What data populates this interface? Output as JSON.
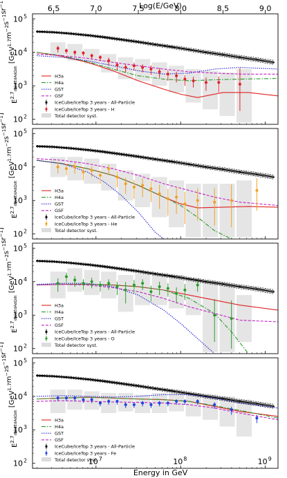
{
  "figure": {
    "top_axis_label": "Log(E/GeV)",
    "top_ticks": [
      "6.5",
      "7.0",
      "7.5",
      "8.0",
      "8.5",
      "9.0"
    ],
    "top_tick_values": [
      6.5,
      7.0,
      7.5,
      8.0,
      8.5,
      9.0
    ],
    "x_label": "Energy in GeV",
    "x_ticks": [
      {
        "base": "10",
        "exp": "7",
        "log": 7
      },
      {
        "base": "10",
        "exp": "8",
        "log": 8
      },
      {
        "base": "10",
        "exp": "9",
        "log": 9
      }
    ],
    "y_ticks": [
      {
        "base": "10",
        "exp": "2",
        "log": 2
      },
      {
        "base": "10",
        "exp": "3",
        "log": 3
      },
      {
        "base": "10",
        "exp": "4",
        "log": 4
      },
      {
        "base": "10",
        "exp": "5",
        "log": 5
      }
    ],
    "y_label_text": "E",
    "y_label_sup": "2.7",
    "y_label_frac": "dN/dEdAdΩdt",
    "y_label_units": "[GeV",
    "y_label_units_sup": "1.7",
    "y_label_units_rest": "m",
    "y_label_units_sup2": "−2",
    "y_label_units_rest2": "s",
    "y_label_units_sup3": "−1",
    "y_label_units_rest3": "sr",
    "y_label_units_sup4": "−1",
    "y_label_units_end": "]",
    "colors": {
      "allparticle": "#000000",
      "H": "#e0202a",
      "He": "#f0a020",
      "O": "#2a9a2a",
      "Fe": "#2040e0",
      "h3a": "#e02020",
      "h4a": "#2a9a2a",
      "gst": "#2020d0",
      "gsf": "#c020c0",
      "syst": "#dcdcdc"
    }
  },
  "chart_data": [
    {
      "type": "line",
      "panel": "H",
      "x_scale": "log",
      "y_scale": "log",
      "xlim_log": [
        6.25,
        9.15
      ],
      "ylim_log": [
        1.85,
        5.15
      ],
      "legend": [
        "H3a",
        "H4a",
        "GST",
        "GSF",
        "IceCube/IceTop 3 years - All-Particle",
        "IceCube/IceTop 3 years - H",
        "Total detector syst."
      ],
      "allparticle": {
        "logE": [
          6.3,
          6.5,
          6.7,
          6.9,
          7.1,
          7.3,
          7.5,
          7.7,
          7.9,
          8.1,
          8.3,
          8.5,
          8.7,
          8.9,
          9.1
        ],
        "logF": [
          4.62,
          4.6,
          4.56,
          4.51,
          4.45,
          4.38,
          4.31,
          4.23,
          4.16,
          4.08,
          4.0,
          3.93,
          3.85,
          3.78,
          3.7
        ]
      },
      "component": {
        "label": "H",
        "logE": [
          6.55,
          6.65,
          6.75,
          6.85,
          6.95,
          7.05,
          7.15,
          7.25,
          7.35,
          7.45,
          7.55,
          7.65,
          7.75,
          7.85,
          7.95,
          8.05,
          8.15,
          8.3,
          8.45,
          8.7
        ],
        "logF": [
          4.12,
          4.05,
          4.0,
          3.98,
          3.9,
          3.85,
          3.75,
          3.62,
          3.55,
          3.6,
          3.55,
          3.5,
          3.42,
          3.35,
          3.3,
          3.2,
          3.15,
          3.1,
          3.1,
          3.05
        ],
        "err": [
          0.12,
          0.1,
          0.1,
          0.1,
          0.1,
          0.12,
          0.15,
          0.15,
          0.15,
          0.15,
          0.15,
          0.18,
          0.18,
          0.2,
          0.2,
          0.2,
          0.2,
          0.25,
          0.3,
          0.8
        ]
      },
      "syst": {
        "logE": [
          6.55,
          6.75,
          6.95,
          7.15,
          7.35,
          7.55,
          7.75,
          7.95,
          8.15,
          8.35,
          8.55,
          8.75
        ],
        "lo": [
          3.9,
          3.75,
          3.65,
          3.4,
          3.2,
          3.15,
          3.0,
          2.8,
          2.5,
          2.3,
          2.1,
          1.9
        ],
        "hi": [
          4.3,
          4.25,
          4.1,
          3.95,
          3.85,
          3.8,
          3.7,
          3.6,
          3.5,
          3.45,
          3.4,
          3.5
        ]
      },
      "models": {
        "h3a": {
          "logE": [
            6.3,
            6.6,
            6.9,
            7.2,
            7.5,
            7.8,
            8.0,
            8.2,
            8.5,
            8.8,
            9.15
          ],
          "logF": [
            4.0,
            3.88,
            3.7,
            3.45,
            3.15,
            2.9,
            2.75,
            2.65,
            2.8,
            2.8,
            2.7
          ]
        },
        "h4a": {
          "logE": [
            6.3,
            6.6,
            6.9,
            7.2,
            7.5,
            7.8,
            8.1,
            8.4,
            8.7,
            9.15
          ],
          "logF": [
            4.0,
            3.9,
            3.72,
            3.5,
            3.3,
            3.2,
            3.15,
            3.18,
            3.2,
            3.22
          ]
        },
        "gst": {
          "logE": [
            6.3,
            6.6,
            6.9,
            7.2,
            7.5,
            7.8,
            8.1,
            8.4,
            8.7,
            9.15
          ],
          "logF": [
            3.9,
            3.85,
            3.75,
            3.6,
            3.45,
            3.35,
            3.38,
            3.5,
            3.55,
            3.5
          ]
        },
        "gsf": {
          "logE": [
            6.3,
            6.6,
            6.9,
            7.2,
            7.5,
            7.8,
            8.1,
            8.4,
            8.7,
            9.15
          ],
          "logF": [
            3.95,
            3.9,
            3.82,
            3.7,
            3.6,
            3.5,
            3.42,
            3.38,
            3.35,
            3.35
          ]
        }
      }
    },
    {
      "type": "line",
      "panel": "He",
      "x_scale": "log",
      "y_scale": "log",
      "xlim_log": [
        6.25,
        9.15
      ],
      "ylim_log": [
        1.85,
        5.15
      ],
      "legend": [
        "H3a",
        "H4a",
        "GST",
        "GSF",
        "IceCube/IceTop 3 years - All-Particle",
        "IceCube/IceTop 3 years - He",
        "Total detector syst."
      ],
      "allparticle": {
        "logE": [
          6.3,
          6.5,
          6.7,
          6.9,
          7.1,
          7.3,
          7.5,
          7.7,
          7.9,
          8.1,
          8.3,
          8.5,
          8.7,
          8.9,
          9.1
        ],
        "logF": [
          4.62,
          4.6,
          4.56,
          4.51,
          4.45,
          4.38,
          4.31,
          4.23,
          4.16,
          4.08,
          4.0,
          3.93,
          3.85,
          3.78,
          3.7
        ]
      },
      "component": {
        "label": "He",
        "logE": [
          6.55,
          6.65,
          6.75,
          6.85,
          6.95,
          7.05,
          7.15,
          7.25,
          7.35,
          7.45,
          7.55,
          7.65,
          7.75,
          7.85,
          7.95,
          8.05,
          8.2,
          8.4,
          8.6,
          8.9
        ],
        "logF": [
          4.0,
          3.95,
          4.0,
          3.85,
          3.9,
          3.75,
          3.95,
          3.7,
          3.5,
          3.4,
          3.45,
          3.35,
          3.2,
          3.05,
          3.1,
          2.9,
          3.0,
          2.95,
          3.0,
          3.3
        ],
        "err": [
          0.2,
          0.2,
          0.2,
          0.25,
          0.2,
          0.25,
          0.2,
          0.3,
          0.3,
          0.35,
          0.35,
          0.4,
          0.45,
          0.5,
          0.5,
          0.6,
          0.6,
          0.7,
          0.8,
          0.6
        ]
      },
      "syst": {
        "logE": [
          6.55,
          6.75,
          6.95,
          7.15,
          7.35,
          7.55,
          7.75,
          7.95,
          8.15,
          8.35,
          8.55,
          8.75
        ],
        "lo": [
          3.7,
          3.6,
          3.5,
          3.3,
          3.0,
          2.8,
          2.5,
          2.2,
          1.9,
          1.9,
          1.9,
          1.9
        ],
        "hi": [
          4.3,
          4.3,
          4.25,
          4.1,
          3.9,
          3.8,
          3.7,
          3.6,
          3.5,
          3.5,
          3.5,
          3.6
        ]
      },
      "models": {
        "h3a": {
          "logE": [
            6.3,
            6.6,
            6.9,
            7.2,
            7.5,
            7.8,
            8.0,
            8.2,
            8.5,
            8.8,
            9.15
          ],
          "logF": [
            4.2,
            4.1,
            3.95,
            3.75,
            3.45,
            3.1,
            2.9,
            2.78,
            2.8,
            2.82,
            2.8
          ]
        },
        "h4a": {
          "logE": [
            6.3,
            6.6,
            6.9,
            7.2,
            7.5,
            7.8,
            8.0,
            8.2,
            8.4,
            8.6
          ],
          "logF": [
            4.2,
            4.1,
            3.95,
            3.75,
            3.45,
            3.1,
            2.85,
            2.5,
            2.1,
            1.85
          ]
        },
        "gst": {
          "logE": [
            6.3,
            6.6,
            6.9,
            7.1,
            7.3,
            7.5,
            7.6,
            7.7,
            7.8
          ],
          "logF": [
            4.2,
            4.1,
            3.85,
            3.55,
            3.15,
            2.65,
            2.35,
            2.05,
            1.85
          ]
        },
        "gsf": {
          "logE": [
            6.3,
            6.6,
            6.9,
            7.2,
            7.5,
            7.8,
            8.1,
            8.4,
            8.7,
            9.15
          ],
          "logF": [
            4.25,
            4.2,
            4.1,
            3.95,
            3.75,
            3.5,
            3.3,
            3.1,
            2.95,
            2.85
          ]
        }
      }
    },
    {
      "type": "line",
      "panel": "O",
      "x_scale": "log",
      "y_scale": "log",
      "xlim_log": [
        6.25,
        9.15
      ],
      "ylim_log": [
        1.85,
        5.15
      ],
      "legend": [
        "H3a",
        "H4a",
        "GST",
        "GSF",
        "IceCube/IceTop 3 years - All-Particle",
        "IceCube/IceTop 3 years - O",
        "Total detector syst."
      ],
      "allparticle": {
        "logE": [
          6.3,
          6.5,
          6.7,
          6.9,
          7.1,
          7.3,
          7.5,
          7.7,
          7.9,
          8.1,
          8.3,
          8.5,
          8.7,
          8.9,
          9.1
        ],
        "logF": [
          4.62,
          4.6,
          4.56,
          4.51,
          4.45,
          4.38,
          4.31,
          4.23,
          4.16,
          4.08,
          4.0,
          3.93,
          3.85,
          3.78,
          3.7
        ]
      },
      "component": {
        "label": "O",
        "logE": [
          6.55,
          6.65,
          6.75,
          6.85,
          6.95,
          7.05,
          7.15,
          7.25,
          7.35,
          7.45,
          7.55,
          7.65,
          7.75,
          7.85,
          7.95,
          8.05,
          8.2,
          8.4,
          8.6
        ],
        "logF": [
          3.95,
          4.15,
          4.05,
          3.95,
          4.0,
          3.9,
          3.95,
          3.85,
          3.75,
          3.9,
          3.95,
          3.7,
          3.85,
          3.8,
          3.65,
          3.75,
          3.9,
          3.0,
          2.9
        ],
        "err": [
          0.25,
          0.2,
          0.2,
          0.2,
          0.2,
          0.2,
          0.2,
          0.25,
          0.4,
          0.25,
          0.2,
          0.3,
          0.25,
          0.25,
          0.3,
          0.3,
          0.2,
          0.8,
          0.9
        ]
      },
      "syst": {
        "logE": [
          6.55,
          6.75,
          6.95,
          7.15,
          7.35,
          7.55,
          7.75,
          7.95,
          8.15,
          8.35,
          8.55,
          8.75
        ],
        "lo": [
          3.5,
          3.7,
          3.6,
          3.5,
          3.1,
          3.3,
          3.3,
          3.2,
          3.0,
          1.9,
          1.9,
          2.2
        ],
        "hi": [
          4.3,
          4.4,
          4.35,
          4.3,
          4.2,
          4.25,
          4.2,
          4.2,
          4.1,
          4.0,
          3.9,
          3.6
        ]
      },
      "models": {
        "h3a": {
          "logE": [
            6.3,
            6.6,
            6.9,
            7.2,
            7.5,
            7.8,
            8.1,
            8.4,
            8.7,
            9.15
          ],
          "logF": [
            3.9,
            3.92,
            3.92,
            3.9,
            3.85,
            3.75,
            3.6,
            3.45,
            3.3,
            3.15
          ]
        },
        "h4a": {
          "logE": [
            6.3,
            6.6,
            6.9,
            7.2,
            7.5,
            7.8,
            8.1,
            8.4,
            8.6,
            8.8
          ],
          "logF": [
            3.9,
            3.92,
            3.92,
            3.9,
            3.85,
            3.75,
            3.5,
            3.05,
            2.5,
            1.85
          ]
        },
        "gst": {
          "logE": [
            6.3,
            6.6,
            6.9,
            7.2,
            7.5,
            7.8,
            8.0,
            8.2,
            8.4
          ],
          "logF": [
            3.92,
            3.95,
            3.95,
            3.85,
            3.6,
            3.15,
            2.75,
            2.3,
            1.85
          ]
        },
        "gsf": {
          "logE": [
            6.3,
            6.6,
            6.9,
            7.2,
            7.5,
            7.8,
            8.1,
            8.4,
            8.7,
            9.15
          ],
          "logF": [
            3.9,
            3.92,
            3.9,
            3.82,
            3.7,
            3.5,
            3.25,
            3.05,
            2.85,
            2.8
          ]
        }
      }
    },
    {
      "type": "line",
      "panel": "Fe",
      "x_scale": "log",
      "y_scale": "log",
      "xlim_log": [
        6.25,
        9.15
      ],
      "ylim_log": [
        1.85,
        5.15
      ],
      "legend": [
        "H3a",
        "H4a",
        "GST",
        "GSF",
        "IceCube/IceTop 3 years - All-Particle",
        "IceCube/IceTop 3 years - Fe",
        "Total detector syst."
      ],
      "allparticle": {
        "logE": [
          6.3,
          6.5,
          6.7,
          6.9,
          7.1,
          7.3,
          7.5,
          7.7,
          7.9,
          8.1,
          8.3,
          8.5,
          8.7,
          8.9,
          9.1
        ],
        "logF": [
          4.62,
          4.6,
          4.56,
          4.51,
          4.45,
          4.38,
          4.31,
          4.23,
          4.16,
          4.08,
          4.0,
          3.93,
          3.85,
          3.78,
          3.7
        ]
      },
      "component": {
        "label": "Fe",
        "logE": [
          6.55,
          6.65,
          6.75,
          6.85,
          6.95,
          7.05,
          7.15,
          7.25,
          7.35,
          7.45,
          7.55,
          7.65,
          7.75,
          7.85,
          7.95,
          8.05,
          8.2,
          8.4,
          8.6,
          8.9
        ],
        "logF": [
          3.95,
          3.95,
          3.95,
          3.9,
          3.9,
          3.8,
          3.85,
          3.85,
          3.75,
          3.75,
          3.8,
          3.75,
          3.8,
          3.8,
          3.85,
          3.85,
          3.85,
          3.75,
          3.6,
          3.35
        ],
        "err": [
          0.1,
          0.1,
          0.1,
          0.1,
          0.1,
          0.1,
          0.1,
          0.1,
          0.1,
          0.1,
          0.1,
          0.1,
          0.1,
          0.1,
          0.1,
          0.1,
          0.1,
          0.12,
          0.15,
          0.15
        ]
      },
      "syst": {
        "logE": [
          6.55,
          6.75,
          6.95,
          7.15,
          7.35,
          7.55,
          7.75,
          7.95,
          8.15,
          8.35,
          8.55,
          8.75
        ],
        "lo": [
          3.5,
          3.6,
          3.6,
          3.5,
          3.55,
          3.5,
          3.5,
          3.55,
          3.4,
          3.3,
          3.1,
          2.8
        ],
        "hi": [
          4.2,
          4.2,
          4.15,
          4.1,
          4.1,
          4.05,
          4.1,
          4.1,
          4.1,
          4.05,
          4.0,
          3.9
        ]
      },
      "models": {
        "h3a": {
          "logE": [
            6.3,
            6.6,
            6.9,
            7.2,
            7.5,
            7.8,
            8.1,
            8.4,
            8.7,
            9.15
          ],
          "logF": [
            3.92,
            3.95,
            3.97,
            3.95,
            3.92,
            3.9,
            3.85,
            3.7,
            3.55,
            3.4
          ]
        },
        "h4a": {
          "logE": [
            6.3,
            6.6,
            6.9,
            7.2,
            7.5,
            7.8,
            8.1,
            8.4,
            8.7,
            9.15
          ],
          "logF": [
            3.92,
            3.95,
            3.97,
            3.95,
            3.92,
            3.9,
            3.85,
            3.72,
            3.58,
            3.35
          ]
        },
        "gst": {
          "logE": [
            6.3,
            6.6,
            6.9,
            7.2,
            7.5,
            7.8,
            8.1,
            8.4,
            8.7,
            9.15
          ],
          "logF": [
            4.0,
            4.02,
            4.0,
            3.98,
            4.0,
            4.05,
            4.05,
            3.95,
            3.8,
            3.65
          ]
        },
        "gsf": {
          "logE": [
            6.3,
            6.6,
            6.9,
            7.2,
            7.5,
            7.8,
            8.1,
            8.4,
            8.7,
            9.15
          ],
          "logF": [
            3.85,
            3.87,
            3.85,
            3.83,
            3.82,
            3.8,
            3.75,
            3.65,
            3.5,
            3.3
          ]
        }
      }
    }
  ]
}
